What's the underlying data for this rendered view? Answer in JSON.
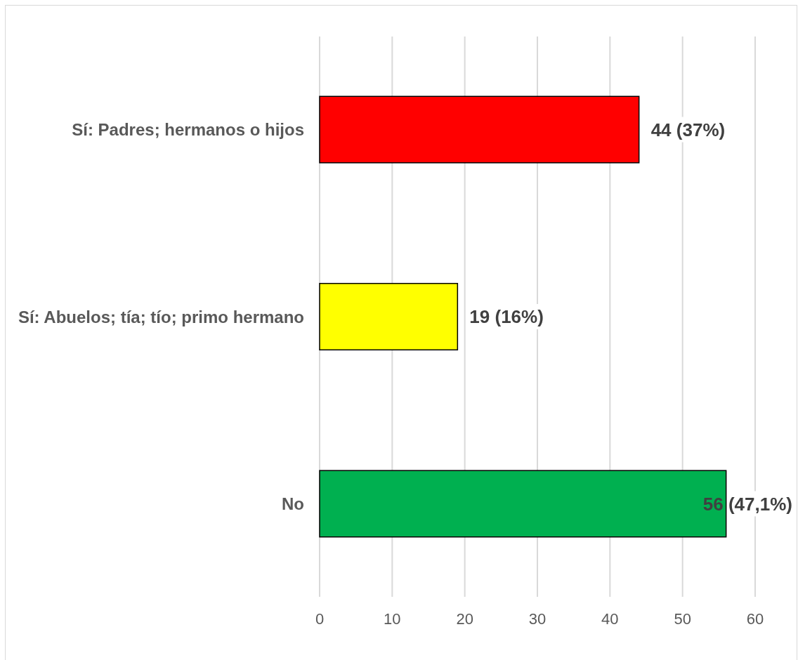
{
  "chart_data": {
    "type": "bar",
    "orientation": "horizontal",
    "categories": [
      "Sí: Padres; hermanos o hijos",
      "Sí: Abuelos; tía; tío; primo hermano",
      "No"
    ],
    "values": [
      44,
      19,
      56
    ],
    "colors": [
      "#ff0000",
      "#ffff00",
      "#00b050"
    ],
    "value_labels": [
      "44 (37%)",
      "19 (16%)",
      "56 (47,1%)"
    ],
    "xlim": [
      0,
      60
    ],
    "xticks": [
      0,
      10,
      20,
      30,
      40,
      50,
      60
    ],
    "grid": "x"
  }
}
